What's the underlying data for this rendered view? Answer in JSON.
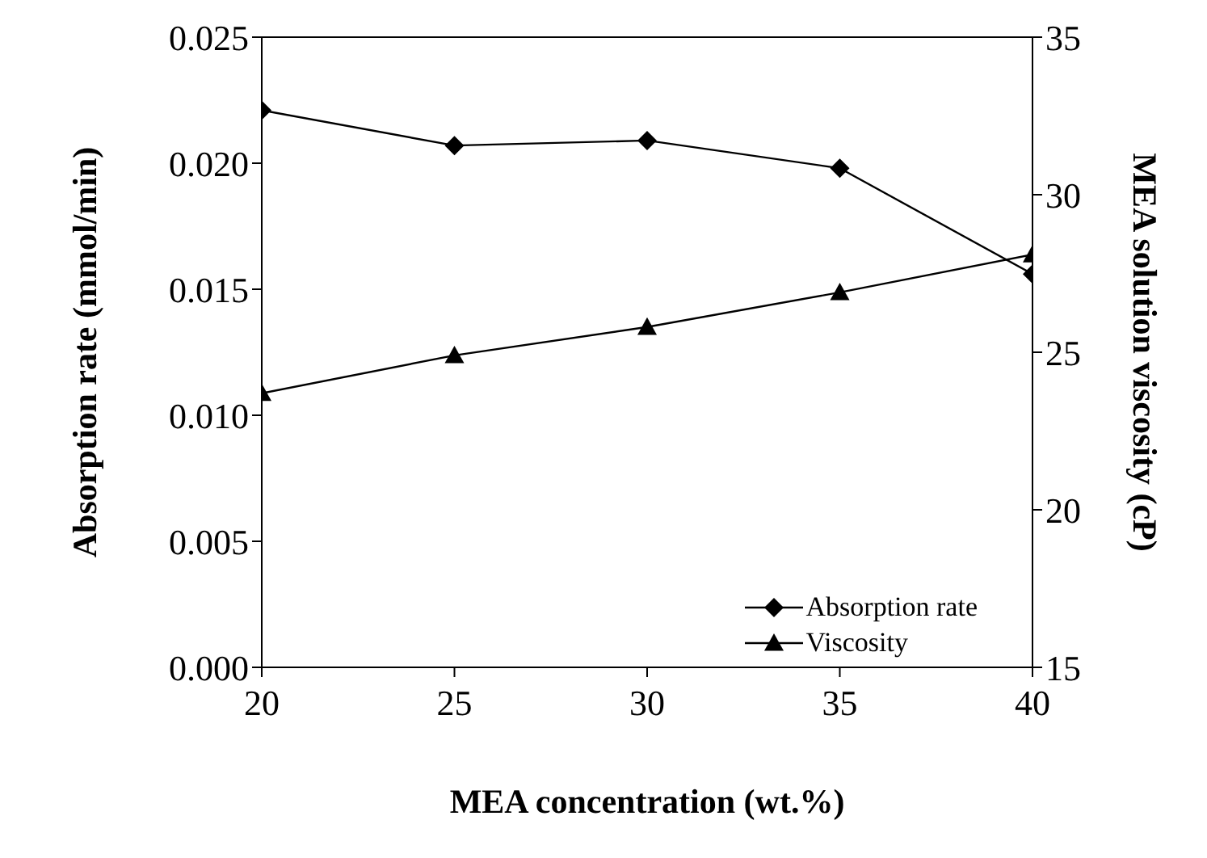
{
  "chart_data": {
    "type": "line",
    "xlabel": "MEA concentration (wt.%)",
    "ylabel": "Absorption rate (mmol/min)",
    "y2label": "MEA solution viscosity (cP)",
    "x": [
      20,
      25,
      30,
      35,
      40
    ],
    "series": [
      {
        "name": "Absorption rate",
        "color": "#000000",
        "marker": "diamond",
        "values": [
          0.0221,
          0.0207,
          0.0209,
          0.0198,
          0.0156
        ]
      },
      {
        "name": "Viscosity",
        "color": "#000000",
        "marker": "triangle",
        "axis": "y2",
        "values": [
          23.7,
          24.9,
          25.8,
          26.9,
          28.1
        ]
      }
    ],
    "xlim": [
      20,
      40
    ],
    "xticks": [
      20,
      25,
      30,
      35,
      40
    ],
    "ylim": [
      0,
      0.025
    ],
    "yticks": [
      {
        "value": 0,
        "label": "0.000"
      },
      {
        "value": 0.005,
        "label": "0.005"
      },
      {
        "value": 0.01,
        "label": "0.010"
      },
      {
        "value": 0.015,
        "label": "0.015"
      },
      {
        "value": 0.02,
        "label": "0.020"
      },
      {
        "value": 0.025,
        "label": "0.025"
      }
    ],
    "y2lim": [
      15,
      35
    ],
    "y2ticks": [
      15,
      20,
      25,
      30,
      35
    ],
    "grid": false,
    "legend": "bottom right",
    "line_style": "solid"
  }
}
